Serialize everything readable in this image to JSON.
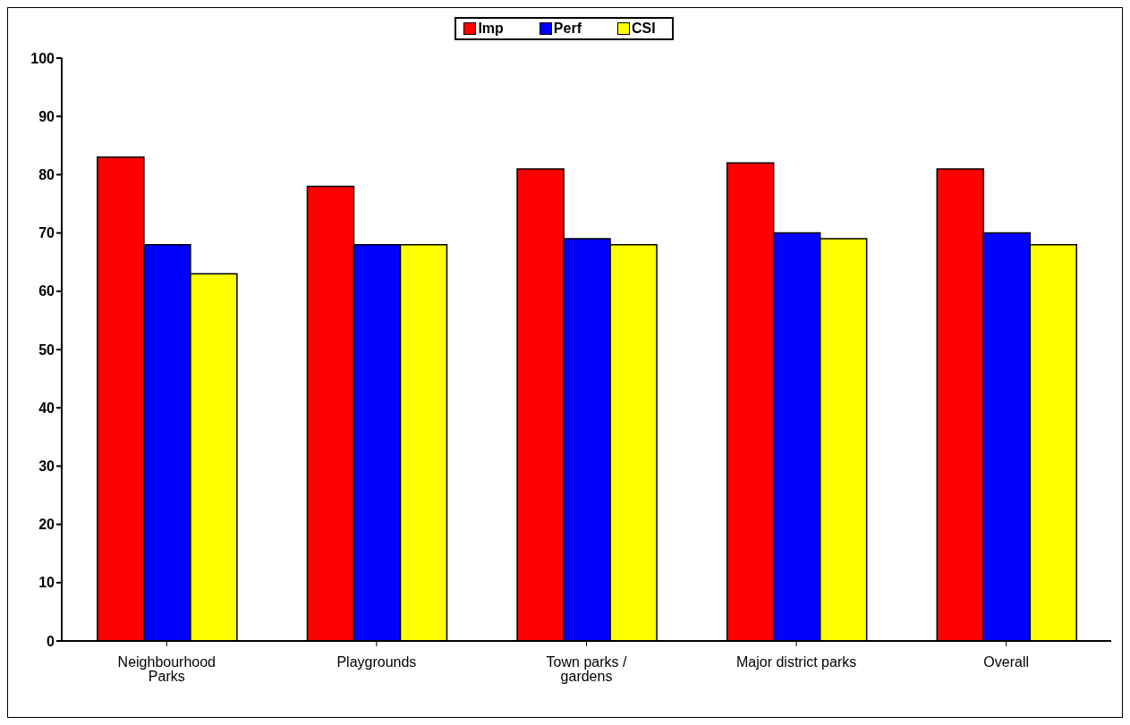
{
  "chart_data": {
    "type": "bar",
    "categories": [
      "Neighbourhood Parks",
      "Playgrounds",
      "Town parks / gardens",
      "Major district parks",
      "Overall"
    ],
    "series": [
      {
        "name": "Imp",
        "color": "#ff0000",
        "values": [
          83,
          78,
          81,
          82,
          81
        ]
      },
      {
        "name": "Perf",
        "color": "#0000ff",
        "values": [
          68,
          68,
          69,
          70,
          70
        ]
      },
      {
        "name": "CSI",
        "color": "#ffff00",
        "values": [
          63,
          68,
          68,
          69,
          68
        ]
      }
    ],
    "ylim": [
      0,
      100
    ],
    "yticks": [
      0,
      10,
      20,
      30,
      40,
      50,
      60,
      70,
      80,
      90,
      100
    ],
    "grid": false,
    "legend": "top"
  }
}
